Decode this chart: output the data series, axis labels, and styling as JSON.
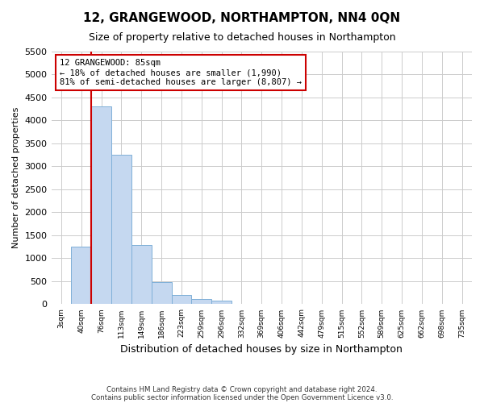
{
  "title": "12, GRANGEWOOD, NORTHAMPTON, NN4 0QN",
  "subtitle": "Size of property relative to detached houses in Northampton",
  "xlabel": "Distribution of detached houses by size in Northampton",
  "ylabel": "Number of detached properties",
  "footer_line1": "Contains HM Land Registry data © Crown copyright and database right 2024.",
  "footer_line2": "Contains public sector information licensed under the Open Government Licence v3.0.",
  "bin_labels": [
    "3sqm",
    "40sqm",
    "76sqm",
    "113sqm",
    "149sqm",
    "186sqm",
    "223sqm",
    "259sqm",
    "296sqm",
    "332sqm",
    "369sqm",
    "406sqm",
    "442sqm",
    "479sqm",
    "515sqm",
    "552sqm",
    "589sqm",
    "625sqm",
    "662sqm",
    "698sqm",
    "735sqm"
  ],
  "bar_values": [
    0,
    1250,
    4300,
    3250,
    1280,
    490,
    200,
    105,
    70,
    0,
    0,
    0,
    0,
    0,
    0,
    0,
    0,
    0,
    0,
    0,
    0
  ],
  "bar_color": "#c5d8f0",
  "bar_edge_color": "#7fb0d8",
  "red_line_x": 1.5,
  "property_label": "12 GRANGEWOOD: 85sqm",
  "annotation_line1": "← 18% of detached houses are smaller (1,990)",
  "annotation_line2": "81% of semi-detached houses are larger (8,807) →",
  "ylim": [
    0,
    5500
  ],
  "yticks": [
    0,
    500,
    1000,
    1500,
    2000,
    2500,
    3000,
    3500,
    4000,
    4500,
    5000,
    5500
  ],
  "grid_color": "#cccccc",
  "annotation_box_color": "#ffffff",
  "annotation_box_edge": "#cc0000",
  "red_line_color": "#cc0000",
  "background_color": "#ffffff"
}
